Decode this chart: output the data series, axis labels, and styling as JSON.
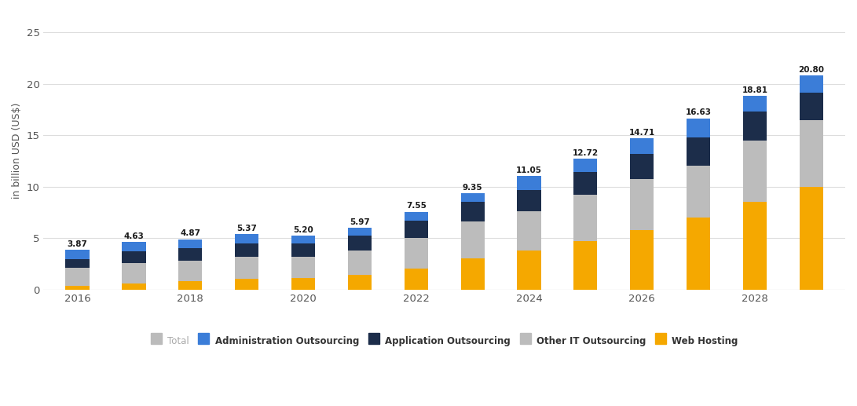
{
  "years": [
    2016,
    2017,
    2018,
    2019,
    2020,
    2021,
    2022,
    2023,
    2024,
    2025,
    2026,
    2027,
    2028,
    2029
  ],
  "totals": [
    3.87,
    4.63,
    4.87,
    5.37,
    5.2,
    5.97,
    7.55,
    9.35,
    11.05,
    12.72,
    14.71,
    16.63,
    18.81,
    20.8
  ],
  "web_hosting": [
    0.35,
    0.55,
    0.8,
    1.05,
    1.1,
    1.45,
    2.0,
    3.0,
    3.8,
    4.7,
    5.8,
    7.0,
    8.5,
    10.0
  ],
  "other_it_outsourcing": [
    1.72,
    1.98,
    2.02,
    2.12,
    2.05,
    2.3,
    3.0,
    3.6,
    3.8,
    4.5,
    4.9,
    5.0,
    6.0,
    6.5
  ],
  "application_outsourcing": [
    0.9,
    1.15,
    1.2,
    1.3,
    1.3,
    1.5,
    1.7,
    1.9,
    2.1,
    2.2,
    2.5,
    2.8,
    2.8,
    2.6
  ],
  "administration_outsourcing": [
    0.9,
    0.95,
    0.85,
    0.9,
    0.75,
    0.72,
    0.85,
    0.85,
    1.35,
    1.32,
    1.51,
    1.83,
    1.51,
    1.7
  ],
  "colors": {
    "web_hosting": "#F5A800",
    "other_it_outsourcing": "#BCBCBC",
    "application_outsourcing": "#1C2D4A",
    "administration_outsourcing": "#3B7DD8"
  },
  "legend_total_color": "#BBBBBB",
  "ylabel": "in billion USD (US$)",
  "yticks": [
    0,
    5,
    10,
    15,
    20,
    25
  ],
  "ylim": [
    0,
    27
  ],
  "background_color": "#ffffff",
  "bar_width": 0.42,
  "xtick_years": [
    2016,
    2018,
    2020,
    2022,
    2024,
    2026,
    2028
  ]
}
